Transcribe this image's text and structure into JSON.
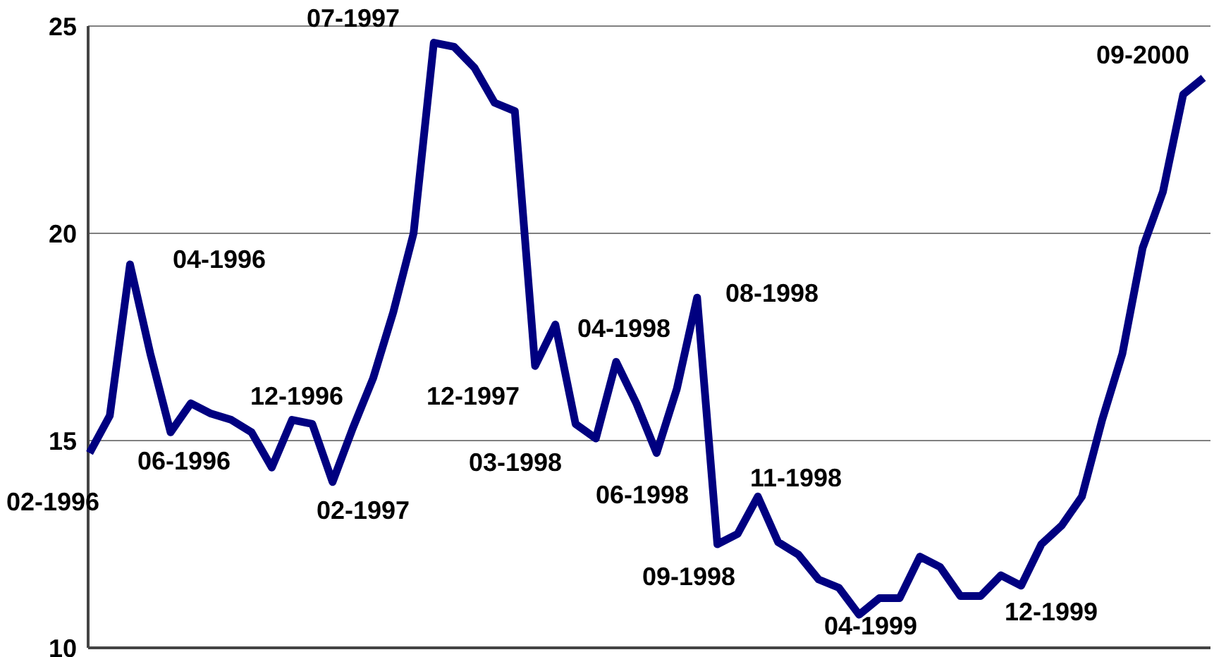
{
  "chart_data": {
    "type": "line",
    "categories": [
      null,
      null,
      null,
      null,
      null,
      null,
      null,
      null,
      null,
      null,
      null,
      null,
      null,
      null,
      null,
      null,
      null,
      null,
      null,
      null,
      null,
      null,
      null,
      null,
      null,
      null,
      null,
      null,
      null,
      null,
      null,
      null,
      null,
      null,
      null,
      null,
      null,
      null,
      null,
      null,
      null,
      null,
      null,
      null,
      null,
      null,
      null,
      null,
      null,
      null,
      null,
      null,
      null,
      null,
      null,
      null
    ],
    "series": [
      {
        "color": "#000080",
        "values": [
          14.7,
          15.6,
          19.25,
          17.1,
          15.2,
          15.9,
          15.65,
          15.5,
          15.2,
          14.35,
          15.5,
          15.4,
          14.0,
          15.3,
          16.5,
          18.1,
          20.0,
          24.6,
          24.5,
          24.0,
          23.15,
          22.95,
          16.8,
          17.8,
          15.4,
          15.05,
          16.9,
          15.9,
          14.7,
          16.25,
          18.45,
          12.5,
          12.75,
          13.65,
          12.55,
          12.25,
          11.65,
          11.45,
          10.8,
          11.2,
          11.2,
          12.2,
          11.95,
          11.25,
          11.25,
          11.75,
          11.5,
          12.5,
          12.95,
          13.65,
          15.5,
          17.1,
          19.65,
          21.0,
          23.35,
          23.75
        ]
      }
    ],
    "ylim": [
      10,
      25
    ],
    "yticks": [
      10,
      15,
      20,
      25
    ],
    "grid": "y",
    "tick_labels": "y",
    "line_style": "solid",
    "annotations": [
      "02-1996",
      "04-1996",
      "06-1996",
      "12-1996",
      "02-1997",
      "07-1997",
      "12-1997",
      "03-1998",
      "04-1998",
      "06-1998",
      "08-1998",
      "09-1998",
      "11-1998",
      "04-1999",
      "12-1999",
      "09-2000"
    ]
  }
}
